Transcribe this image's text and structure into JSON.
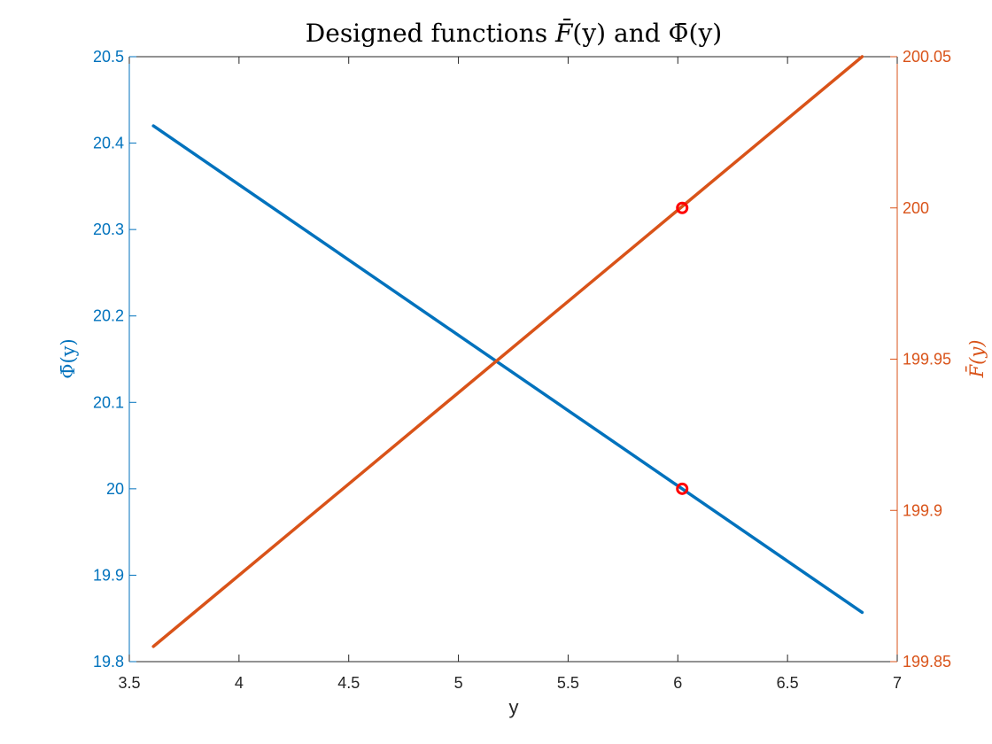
{
  "chart_data": {
    "type": "line",
    "title": "Designed functions F̄(y) and Φ̄(y)",
    "title_parts": {
      "lead": "Designed functions ",
      "f_letter": "F",
      "f_arg": "(y)",
      "joiner": " and ",
      "phi_letter": "Φ",
      "phi_arg": "(y)"
    },
    "xlabel": "y",
    "ylabel_left": "Φ̄(y)",
    "ylabel_right": "F̄(y)",
    "xlim": [
      3.5,
      7
    ],
    "ylim_left": [
      19.8,
      20.5
    ],
    "ylim_right": [
      199.85,
      200.05
    ],
    "x_ticks": [
      "3.5",
      "4",
      "4.5",
      "5",
      "5.5",
      "6",
      "6.5",
      "7"
    ],
    "left_ticks": [
      "19.8",
      "19.9",
      "20",
      "20.1",
      "20.2",
      "20.3",
      "20.4",
      "20.5"
    ],
    "right_ticks": [
      "199.85",
      "199.9",
      "199.95",
      "200",
      "200.05"
    ],
    "grid": false,
    "colors": {
      "left_axis": "#0072BD",
      "right_axis": "#D95319",
      "markers": "#FF0000",
      "box": "#262626"
    },
    "series": [
      {
        "name": "Φ̄(y)",
        "axis": "left",
        "x": [
          3.61,
          6.84
        ],
        "y": [
          20.42,
          19.857
        ]
      },
      {
        "name": "F̄(y)",
        "axis": "right",
        "x": [
          3.61,
          6.84
        ],
        "y": [
          199.855,
          200.05
        ]
      }
    ],
    "markers": [
      {
        "axis": "left",
        "x": 6.02,
        "y": 20.0
      },
      {
        "axis": "right",
        "x": 6.02,
        "y": 200.0
      }
    ]
  }
}
